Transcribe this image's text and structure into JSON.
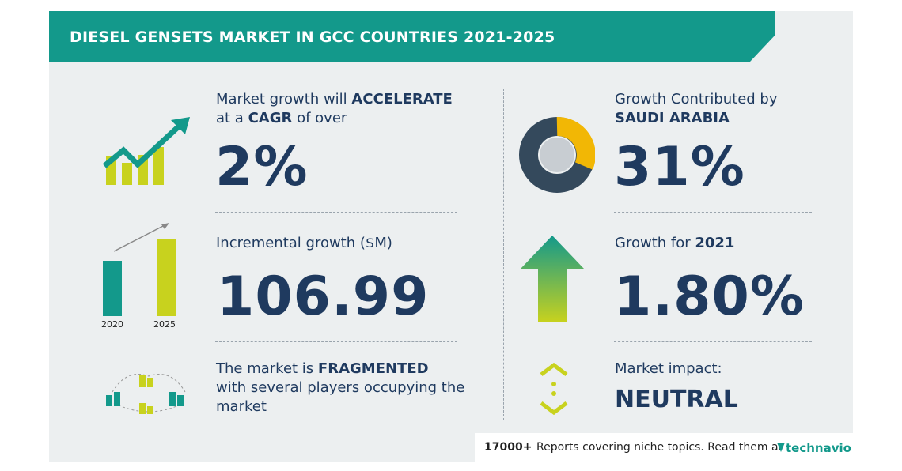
{
  "header": {
    "title": "DIESEL GENSETS MARKET IN GCC COUNTRIES 2021-2025"
  },
  "left": {
    "cagr": {
      "line1": "Market growth will",
      "line1_bold": "ACCELERATE",
      "line2_a": "at a",
      "line2_bold": "CAGR",
      "line2_b": "of over",
      "value": "2%"
    },
    "incremental": {
      "label": "Incremental growth ($M)",
      "value": "106.99",
      "year_start": "2020",
      "year_end": "2025"
    },
    "structure": {
      "line1": "The market is",
      "line1_bold": "FRAGMENTED",
      "line2": "with several players occupying the",
      "line3": "market"
    }
  },
  "right": {
    "contribution": {
      "label": "Growth Contributed by",
      "region": "SAUDI ARABIA",
      "value": "31%"
    },
    "yoy": {
      "label": "Growth for",
      "year": "2021",
      "value": "1.80%"
    },
    "impact": {
      "label": "Market impact:",
      "value": "NEUTRAL"
    }
  },
  "footer": {
    "count": "17000+",
    "text": "Reports covering niche topics. Read them at",
    "brand": "technavio"
  }
}
